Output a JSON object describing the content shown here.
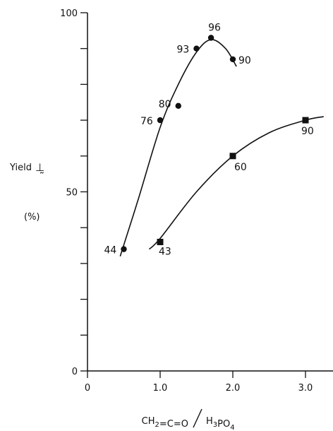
{
  "chart_data": {
    "type": "scatter",
    "xlabel": "CH2=C=O / H3PO4",
    "ylabel": "Yield",
    "ylabel_unit": "(%)",
    "ylabel_glyph": "⊥̰",
    "xlim": [
      0,
      3.3
    ],
    "ylim": [
      0,
      100
    ],
    "x_ticks": [
      0,
      1.0,
      2.0,
      3.0
    ],
    "x_tick_labels": [
      "0",
      "1.0",
      "2.0",
      "3.0"
    ],
    "y_ticks": [
      0,
      10,
      20,
      30,
      40,
      50,
      60,
      70,
      80,
      90,
      100
    ],
    "y_tick_labels": [
      "0",
      "",
      "",
      "",
      "",
      "50",
      "",
      "",
      "",
      "",
      "100"
    ],
    "grid": false,
    "series": [
      {
        "marker": "circle",
        "points": [
          {
            "x": 0.5,
            "y": 34,
            "label": "44"
          },
          {
            "x": 1.0,
            "y": 70,
            "label": "76"
          },
          {
            "x": 1.25,
            "y": 74,
            "label": "80"
          },
          {
            "x": 1.5,
            "y": 90,
            "label": "93"
          },
          {
            "x": 1.7,
            "y": 93,
            "label": "96"
          },
          {
            "x": 2.0,
            "y": 87,
            "label": "90"
          }
        ],
        "curve": [
          [
            0.45,
            32
          ],
          [
            0.7,
            48
          ],
          [
            1.0,
            68
          ],
          [
            1.25,
            80
          ],
          [
            1.5,
            89
          ],
          [
            1.7,
            92.5
          ],
          [
            1.9,
            90
          ],
          [
            2.05,
            85
          ]
        ]
      },
      {
        "marker": "square",
        "points": [
          {
            "x": 1.0,
            "y": 36,
            "label": "43"
          },
          {
            "x": 2.0,
            "y": 60,
            "label": "60"
          },
          {
            "x": 3.0,
            "y": 70,
            "label": "90"
          }
        ],
        "curve": [
          [
            0.85,
            34
          ],
          [
            1.0,
            37
          ],
          [
            1.5,
            50
          ],
          [
            2.0,
            60
          ],
          [
            2.5,
            66.5
          ],
          [
            3.0,
            70
          ],
          [
            3.25,
            71
          ]
        ]
      }
    ]
  }
}
